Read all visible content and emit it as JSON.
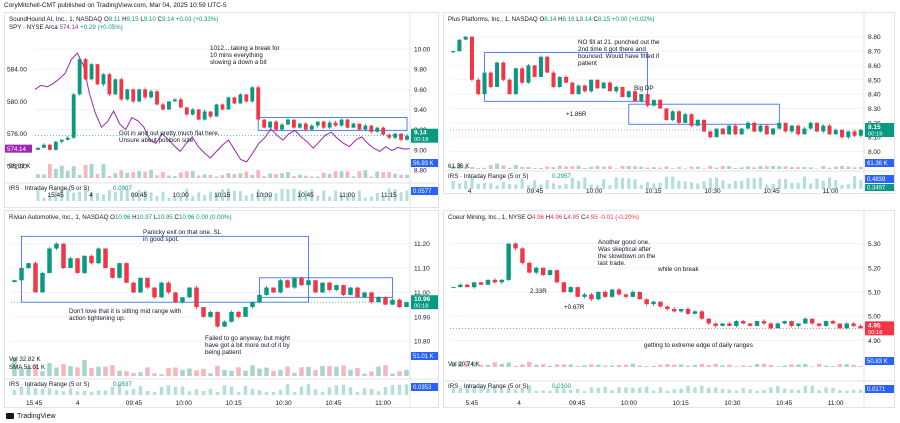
{
  "header": {
    "text": "CoryMitchell-CMT published on TradingView.com, Mar 04, 2025 10:59 UTC-5"
  },
  "footer": {
    "brand": "TradingView"
  },
  "colors": {
    "up": "#089981",
    "down": "#f23645",
    "box": "#2962ff",
    "spy": "#9c27b0",
    "irs": "#2962ff",
    "highlight_red": "#f7a5ad",
    "highlight_green": "#8fd1c2"
  },
  "chart_data": [
    {
      "id": "soun",
      "type": "candlestick",
      "title": "SoundHound AI, Inc., 1, NASDAQ",
      "ohlc": {
        "o": "9.11",
        "h": "9.15",
        "l": "9.10",
        "c": "9.14",
        "chg": "+0.03 (+0.33%)"
      },
      "overlay": {
        "label": "SPY · NYSE Arca",
        "value": "574.14",
        "chg": "+0.29 (+0.05%)"
      },
      "price_axis_right": {
        "ticks": [
          "10.00",
          "9.80",
          "9.60",
          "9.40",
          "9.20",
          "9.00",
          "8.80"
        ],
        "last": "9.14",
        "timer": "00:18"
      },
      "price_axis_left": {
        "ticks": [
          "584.00",
          "580.00",
          "576.00",
          "572.00"
        ],
        "last": "574.14"
      },
      "time_axis": [
        "15:45",
        "4",
        "09:45",
        "10:00",
        "10:15",
        "10:30",
        "10:45",
        "11:00",
        "11:15"
      ],
      "ylim": [
        8.72,
        10.08
      ],
      "close": [
        9.02,
        9.05,
        9.0,
        9.08,
        9.1,
        9.12,
        9.55,
        9.9,
        9.7,
        9.85,
        9.65,
        9.75,
        9.55,
        9.7,
        9.5,
        9.6,
        9.48,
        9.6,
        9.52,
        9.58,
        9.45,
        9.4,
        9.48,
        9.5,
        9.42,
        9.35,
        9.4,
        9.3,
        9.38,
        9.33,
        9.45,
        9.4,
        9.52,
        9.46,
        9.55,
        9.48,
        9.62,
        9.3,
        9.22,
        9.28,
        9.2,
        9.25,
        9.3,
        9.22,
        9.26,
        9.2,
        9.24,
        9.28,
        9.22,
        9.27,
        9.24,
        9.3,
        9.22,
        9.26,
        9.2,
        9.24,
        9.18,
        9.22,
        9.15,
        9.12,
        9.16,
        9.1,
        9.14
      ],
      "spy": [
        581.5,
        582.0,
        581.8,
        582.2,
        582.8,
        583.5,
        585.2,
        586.0,
        584.5,
        581.0,
        578.5,
        576.8,
        577.5,
        578.8,
        577.2,
        576.5,
        578.0,
        577.6,
        576.8,
        575.2,
        574.8,
        576.0,
        575.3,
        574.5,
        573.8,
        574.8,
        575.6,
        574.4,
        573.6,
        573.0,
        573.8,
        574.6,
        575.2,
        574.0,
        572.8,
        572.5,
        573.6,
        574.8,
        575.5,
        576.6,
        575.8,
        575.2,
        576.0,
        576.4,
        575.6,
        575.0,
        574.2,
        575.0,
        575.8,
        576.2,
        575.4,
        574.8,
        574.4,
        575.2,
        575.6,
        574.8,
        574.2,
        573.8,
        574.4,
        573.9,
        574.3,
        574.1,
        574.14
      ],
      "spy_lim": [
        570.5,
        587.5
      ],
      "volume_label": "56.93 K",
      "irs": {
        "label": "IRS · Intraday Range (5 or S)",
        "value": "0.0907",
        "last": "0.0577"
      },
      "boxes": [
        {
          "i0": 37,
          "i1": 62,
          "top": 9.32,
          "bot": 9.19
        }
      ],
      "notes": [
        "1012....taking a break for 10 mins everything slowing a down a bit",
        "Got in and out pretty much flat here. Unsure about position size"
      ]
    },
    {
      "id": "ppl",
      "type": "candlestick",
      "title": "Plus Platforms, Inc., 1, NASDAQ",
      "ohlc": {
        "o": "8.14",
        "h": "8.16",
        "l": "8.14",
        "c": "8.15",
        "chg": "+0.00 (+0.02%)"
      },
      "price_axis_right": {
        "ticks": [
          "8.80",
          "8.70",
          "8.60",
          "8.50",
          "8.40",
          "8.30",
          "8.20",
          "8.10",
          "8.00"
        ],
        "last": "8.15",
        "timer": "00:18"
      },
      "time_axis": [
        "4",
        "09:45",
        "10:00",
        "10:15",
        "10:30",
        "10:45",
        "11:00"
      ],
      "ylim": [
        7.92,
        8.84
      ],
      "close": [
        8.7,
        8.78,
        8.8,
        8.5,
        8.4,
        8.55,
        8.45,
        8.62,
        8.5,
        8.4,
        8.58,
        8.48,
        8.6,
        8.52,
        8.66,
        8.55,
        8.45,
        8.52,
        8.48,
        8.4,
        8.46,
        8.42,
        8.5,
        8.44,
        8.48,
        8.42,
        8.45,
        8.38,
        8.42,
        8.35,
        8.4,
        8.32,
        8.36,
        8.3,
        8.22,
        8.28,
        8.2,
        8.26,
        8.18,
        8.22,
        8.14,
        8.1,
        8.16,
        8.12,
        8.18,
        8.12,
        8.16,
        8.2,
        8.14,
        8.18,
        8.12,
        8.16,
        8.2,
        8.14,
        8.18,
        8.12,
        8.16,
        8.2,
        8.14,
        8.18,
        8.12,
        8.15,
        8.1,
        8.14,
        8.11,
        8.15
      ],
      "volume_label": "61.36 K",
      "irs": {
        "label": "IRS · Intraday Range (5 or S)",
        "value": "0.2957",
        "last": "0.4839",
        "last2": "0.3497"
      },
      "boxes": [
        {
          "i0": 5,
          "i1": 31,
          "top": 8.69,
          "bot": 8.35
        },
        {
          "i0": 28,
          "i1": 52,
          "top": 8.33,
          "bot": 8.19
        }
      ],
      "notes": [
        "NO fill at 21. punched out the 2nd time it got there and bounced. Would have fitted if patient",
        "Big DP",
        "+1.86R"
      ]
    },
    {
      "id": "rivn",
      "type": "candlestick",
      "title": "Rivian Automotive, Inc., 1, NASDAQ",
      "ohlc": {
        "o": "10.96",
        "h": "10.97",
        "l": "10.95",
        "c": "10.96",
        "chg": "0.00 (0.00%)"
      },
      "price_axis_right": {
        "ticks": [
          "11.20",
          "11.10",
          "11.00",
          "10.90",
          "10.80"
        ],
        "last": "10.96",
        "timer": "00:18",
        "level": "10.90"
      },
      "time_axis": [
        "15:45",
        "4",
        "09:45",
        "10:00",
        "10:15",
        "10:30",
        "10:45",
        "11:00"
      ],
      "ylim": [
        10.76,
        11.26
      ],
      "close": [
        11.05,
        11.1,
        11.12,
        11.0,
        11.08,
        11.18,
        11.2,
        11.1,
        11.14,
        11.08,
        11.15,
        11.12,
        11.18,
        11.1,
        11.06,
        11.12,
        11.04,
        11.0,
        11.06,
        11.02,
        10.98,
        11.04,
        11.0,
        10.96,
        10.98,
        11.02,
        10.94,
        10.9,
        10.92,
        10.86,
        10.88,
        10.92,
        10.9,
        10.94,
        10.96,
        10.99,
        11.02,
        11.0,
        11.05,
        11.02,
        11.06,
        11.03,
        11.05,
        11.0,
        11.04,
        11.01,
        11.03,
        10.99,
        11.02,
        10.98,
        11.0,
        10.96,
        10.98,
        10.95,
        10.97,
        10.94,
        10.96
      ],
      "volume_label": "Vol  32.82 K",
      "sma_label": "SMA  51.01 K",
      "volume_last": "51.01 K",
      "irs": {
        "label": "IRS · Intraday Range (5 or S)",
        "value": "0.0537",
        "last": "0.0353"
      },
      "boxes": [
        {
          "i0": 1,
          "i1": 42,
          "top": 11.23,
          "bot": 10.96
        },
        {
          "i0": 35,
          "i1": 54,
          "top": 11.06,
          "bot": 10.98
        }
      ],
      "notes": [
        "Panicky exit on that one. SL in good spot.",
        "Don't love that it is sitting mid range with action tightening up.",
        "Failed to go anyway, but might have got a bit more out of it by being patient"
      ]
    },
    {
      "id": "cde",
      "type": "candlestick",
      "title": "Coeur Mining, Inc., 1, NYSE",
      "ohlc": {
        "o": "4.96",
        "h": "4.96",
        "l": "4.95",
        "c": "4.95",
        "chg": "-0.01 (-0.20%)"
      },
      "price_axis_right": {
        "ticks": [
          "5.30",
          "5.20",
          "5.10",
          "5.00",
          "4.90"
        ],
        "last": "4.95",
        "timer": "00:18"
      },
      "time_axis": [
        "5:45",
        "4",
        "09:45",
        "10:00",
        "10:15",
        "10:30",
        "10:45",
        "11:00"
      ],
      "ylim": [
        4.84,
        5.36
      ],
      "close": [
        5.12,
        5.13,
        5.12,
        5.14,
        5.13,
        5.15,
        5.14,
        5.15,
        5.3,
        5.28,
        5.22,
        5.18,
        5.2,
        5.17,
        5.19,
        5.14,
        5.1,
        5.12,
        5.08,
        5.09,
        5.07,
        5.1,
        5.08,
        5.11,
        5.09,
        5.08,
        5.1,
        5.07,
        5.05,
        5.06,
        5.04,
        5.03,
        5.02,
        5.03,
        5.01,
        5.02,
        4.99,
        4.97,
        4.96,
        4.97,
        4.96,
        4.98,
        4.97,
        4.96,
        4.98,
        4.97,
        4.95,
        4.97,
        4.98,
        4.96,
        4.97,
        4.99,
        4.97,
        4.96,
        4.98,
        4.97,
        4.95,
        4.97,
        4.96,
        4.95
      ],
      "volume_label": "Vol  20.74 K",
      "volume_last": "50.83 K",
      "irs": {
        "label": "IRS · Intraday Range (5 or S)",
        "value": "0.0100",
        "last": "0.0171"
      },
      "boxes": [],
      "notes": [
        "Another good one. Was skeptical after the slowdown on the last trade.",
        "while on break",
        "2.33R",
        "+0.67R",
        "getting to extreme edge of daily ranges"
      ]
    }
  ]
}
